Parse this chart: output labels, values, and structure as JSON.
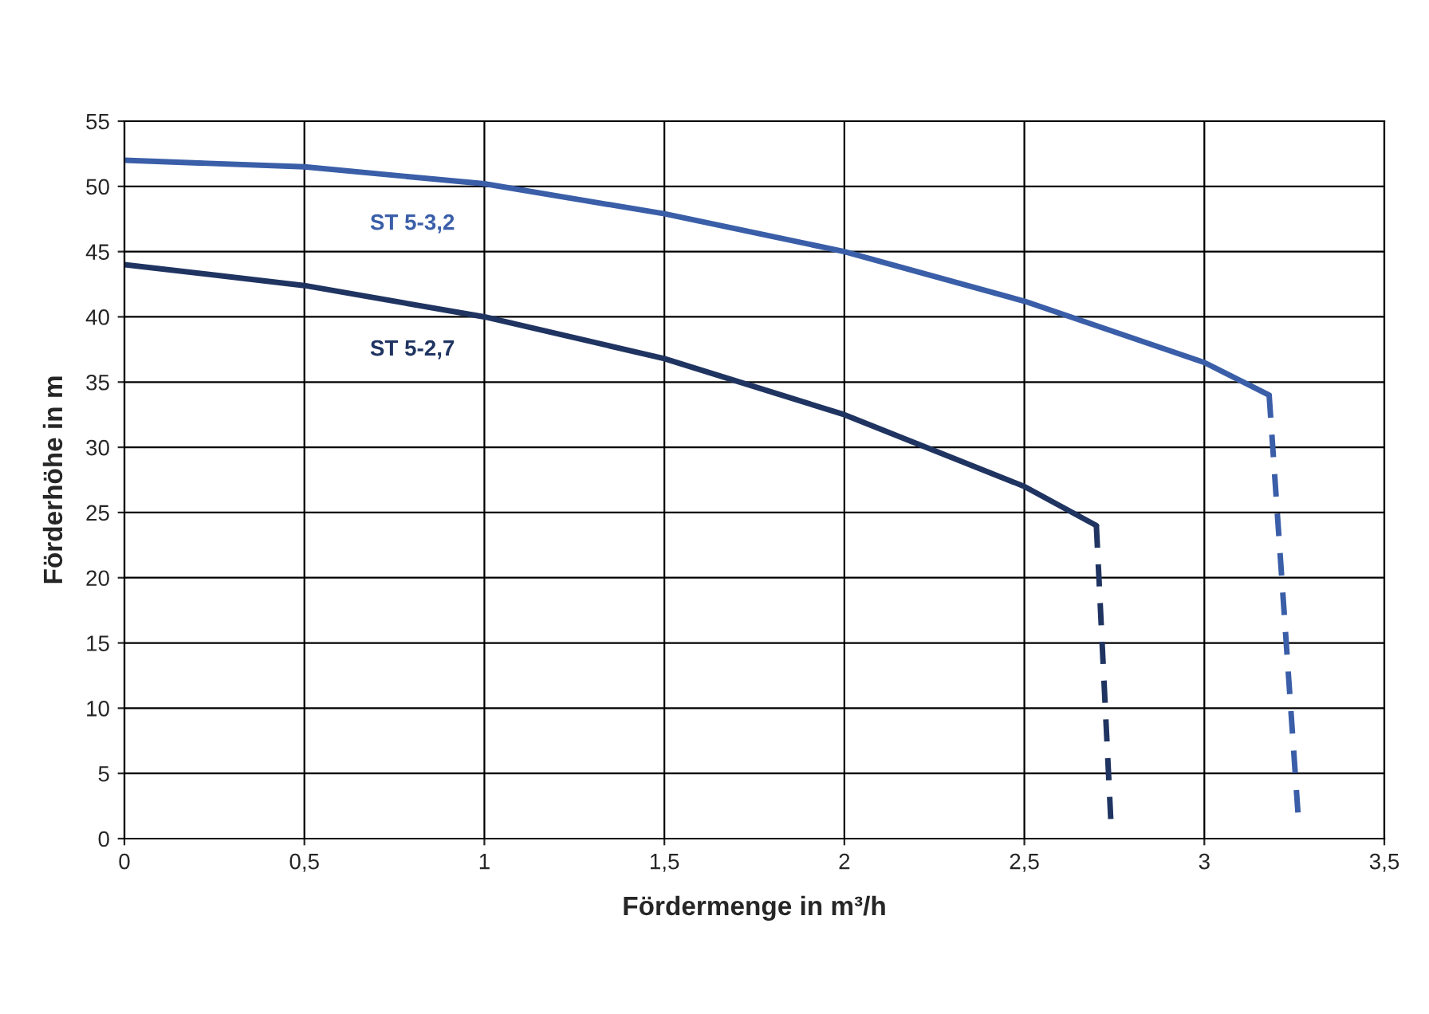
{
  "chart_data": {
    "type": "line",
    "xlabel": "Fördermenge in m³/h",
    "ylabel": "Förderhöhe in m",
    "xlim": [
      0,
      3.5
    ],
    "xticks": [
      0,
      {
        "value": 0.5,
        "label": "0,5"
      },
      1,
      {
        "value": 1.5,
        "label": "1,5"
      },
      2,
      {
        "value": 2.5,
        "label": "2,5"
      },
      3,
      {
        "value": 3.5,
        "label": "3,5"
      }
    ],
    "ylim": [
      0,
      55
    ],
    "yticks": [
      0,
      5,
      10,
      15,
      20,
      25,
      30,
      35,
      40,
      45,
      50,
      55
    ],
    "grid": true,
    "marker": "none",
    "series": [
      {
        "name": "ST 5-3,2",
        "color": "#3a5ea8",
        "line_style": "solid",
        "x": [
          0,
          0.5,
          1,
          1.5,
          2,
          2.5,
          3,
          3.18
        ],
        "values": [
          52,
          51.5,
          50.2,
          47.9,
          45,
          41.2,
          36.5,
          34
        ]
      },
      {
        "color": "#3a5ea8",
        "line_style": "dashed",
        "x": [
          3.18,
          3.26
        ],
        "values": [
          34,
          2
        ]
      },
      {
        "name": "ST 5-2,7",
        "color": "#1f3461",
        "line_style": "solid",
        "x": [
          0,
          0.5,
          1,
          1.5,
          2,
          2.5,
          2.7
        ],
        "values": [
          44,
          42.4,
          40,
          36.8,
          32.5,
          27,
          24
        ]
      },
      {
        "color": "#1f3461",
        "line_style": "dashed",
        "x": [
          2.7,
          2.74
        ],
        "values": [
          24,
          1.5
        ]
      }
    ]
  }
}
